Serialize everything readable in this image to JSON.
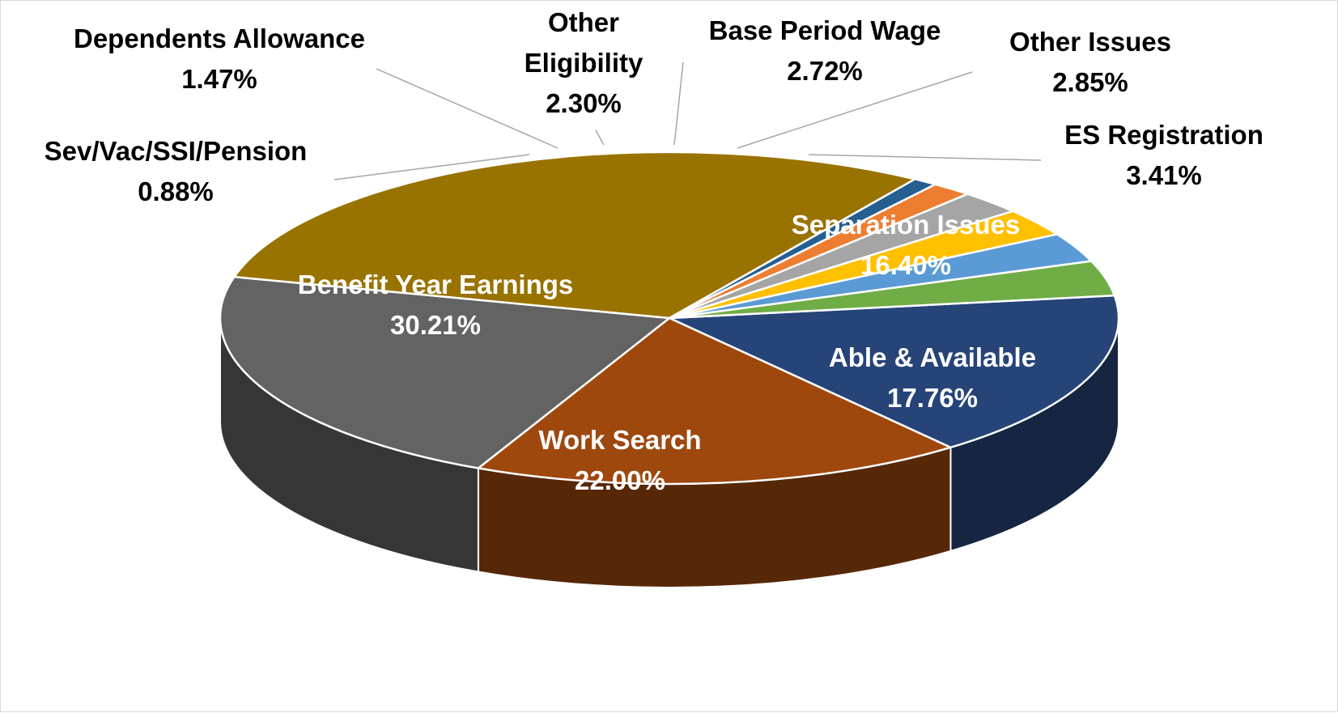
{
  "chart_data": {
    "type": "pie",
    "title": "",
    "slices": [
      {
        "label": "Separation Issues",
        "value": 16.4,
        "value_label": "16.40%",
        "color": "#264478"
      },
      {
        "label": "Able & Available",
        "value": 17.76,
        "value_label": "17.76%",
        "color": "#9e480e"
      },
      {
        "label": "Work Search",
        "value": 22.0,
        "value_label": "22.00%",
        "color": "#636363"
      },
      {
        "label": "Benefit Year Earnings",
        "value": 30.21,
        "value_label": "30.21%",
        "color": "#997300"
      },
      {
        "label": "Sev/Vac/SSI/Pension",
        "value": 0.88,
        "value_label": "0.88%",
        "color": "#255e91"
      },
      {
        "label": "Dependents Allowance",
        "value": 1.47,
        "value_label": "1.47%",
        "color": "#ed7d31"
      },
      {
        "label": "Other\nEligibility",
        "value": 2.3,
        "value_label": "2.30%",
        "color": "#a5a5a5"
      },
      {
        "label": "Base Period Wage",
        "value": 2.72,
        "value_label": "2.72%",
        "color": "#ffc000"
      },
      {
        "label": "Other Issues",
        "value": 2.85,
        "value_label": "2.85%",
        "color": "#5b9bd5"
      },
      {
        "label": "ES Registration",
        "value": 3.41,
        "value_label": "3.41%",
        "color": "#70ad47"
      }
    ],
    "legend": "none",
    "data_labels": "category and percentage",
    "style": "3d-pie"
  }
}
